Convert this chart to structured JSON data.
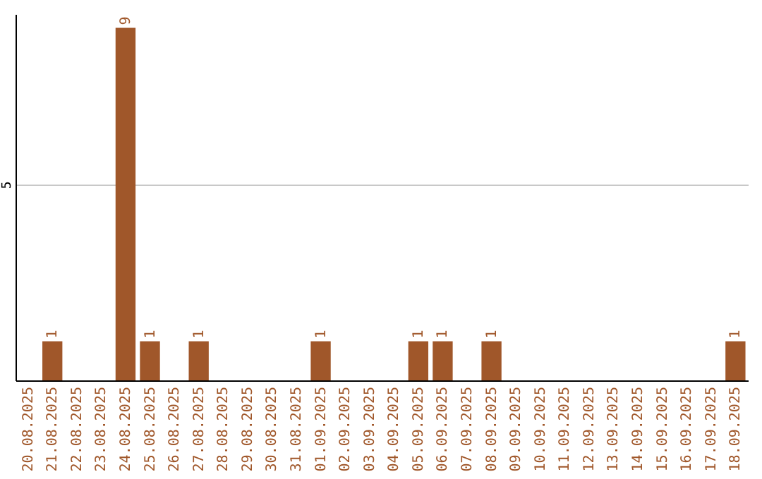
{
  "chart_data": {
    "type": "bar",
    "categories": [
      "20.08.2025",
      "21.08.2025",
      "22.08.2025",
      "23.08.2025",
      "24.08.2025",
      "25.08.2025",
      "26.08.2025",
      "27.08.2025",
      "28.08.2025",
      "29.08.2025",
      "30.08.2025",
      "31.08.2025",
      "01.09.2025",
      "02.09.2025",
      "03.09.2025",
      "04.09.2025",
      "05.09.2025",
      "06.09.2025",
      "07.09.2025",
      "08.09.2025",
      "09.09.2025",
      "10.09.2025",
      "11.09.2025",
      "12.09.2025",
      "13.09.2025",
      "14.09.2025",
      "15.09.2025",
      "16.09.2025",
      "17.09.2025",
      "18.09.2025"
    ],
    "values": [
      0,
      1,
      0,
      0,
      9,
      1,
      0,
      1,
      0,
      0,
      0,
      0,
      1,
      0,
      0,
      0,
      1,
      1,
      0,
      1,
      0,
      0,
      0,
      0,
      0,
      0,
      0,
      0,
      0,
      1
    ],
    "value_labels": [
      null,
      "1",
      null,
      null,
      "9",
      "1",
      null,
      "1",
      null,
      null,
      null,
      null,
      "1",
      null,
      null,
      null,
      "1",
      "1",
      null,
      "1",
      null,
      null,
      null,
      null,
      null,
      null,
      null,
      null,
      null,
      "1"
    ],
    "color": "#a0572a",
    "ylim": [
      0,
      9.35
    ],
    "yticks": [
      5
    ],
    "grid": "y"
  }
}
